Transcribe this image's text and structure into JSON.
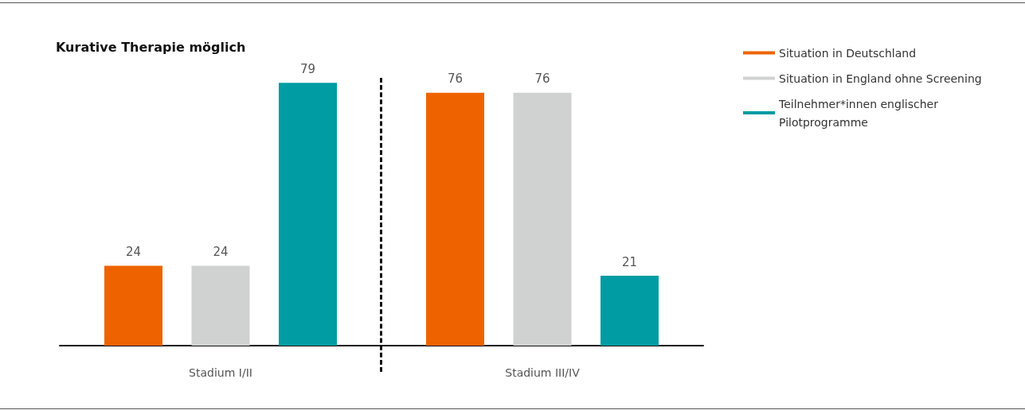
{
  "chart_data": {
    "type": "bar",
    "title": "Kurative Therapie möglich",
    "categories": [
      "Stadium I/II",
      "Stadium III/IV"
    ],
    "series": [
      {
        "name": "Situation in Deutschland",
        "color": "#ee6300",
        "values": [
          24,
          76
        ]
      },
      {
        "name": "Situation in England ohne Screening",
        "color": "#d0d2d1",
        "values": [
          24,
          76
        ]
      },
      {
        "name": "Teilnehmer*innen englischer Pilotprogramme",
        "color": "#009ca3",
        "values": [
          79,
          21
        ]
      }
    ],
    "data_labels": true,
    "legend": "top right"
  }
}
